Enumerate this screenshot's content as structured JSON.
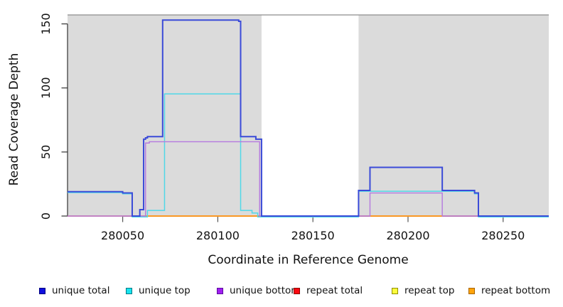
{
  "chart_data": {
    "type": "line",
    "subtype": "step-coverage-plot",
    "title": "",
    "xlabel": "Coordinate in Reference Genome",
    "ylabel": "Read Coverage Depth",
    "xlim": [
      280021,
      280274
    ],
    "ylim": [
      0,
      157
    ],
    "x_ticks": [
      280050,
      280100,
      280150,
      280200,
      280250
    ],
    "y_ticks": [
      0,
      50,
      100,
      150
    ],
    "grid": false,
    "legend_position": "bottom",
    "shading_color": "#DBDBDB",
    "background_shaded_regions_x": [
      [
        280021,
        280123
      ],
      [
        280174,
        280274
      ]
    ],
    "series": [
      {
        "name": "repeat top",
        "color": "#FFFF00",
        "width": 1.4,
        "segments": [
          [
            [
              280021,
              0
            ],
            [
              280274,
              0
            ]
          ]
        ]
      },
      {
        "name": "repeat total",
        "color": "#DC5068",
        "width": 1.6,
        "segments": [
          [
            [
              280021,
              0
            ],
            [
              280274,
              0
            ]
          ]
        ]
      },
      {
        "name": "repeat bottom",
        "color": "#FF9A1C",
        "width": 1.8,
        "segments": [
          [
            [
              280061,
              0
            ],
            [
              280121,
              0
            ]
          ],
          [
            [
              280180,
              0
            ],
            [
              280218,
              0
            ]
          ]
        ]
      },
      {
        "name": "unique top",
        "color": "#50D8E8",
        "width": 1.5,
        "segments": [
          [
            [
              280021,
              19
            ],
            [
              280050,
              18
            ],
            [
              280055,
              0
            ],
            [
              280063,
              5
            ],
            [
              280072,
              96
            ],
            [
              280112,
              5
            ],
            [
              280118,
              3
            ],
            [
              280121,
              0
            ],
            [
              280174,
              20
            ],
            [
              280235,
              18
            ],
            [
              280237,
              0
            ],
            [
              280274,
              0
            ]
          ]
        ]
      },
      {
        "name": "unique bottom",
        "color": "#B579DF",
        "width": 1.4,
        "segments": [
          [
            [
              280021,
              0
            ],
            [
              280062,
              57
            ],
            [
              280064,
              58
            ],
            [
              280122,
              0
            ],
            [
              280180,
              18
            ],
            [
              280218,
              0
            ],
            [
              280274,
              0
            ]
          ]
        ]
      },
      {
        "name": "unique total",
        "color": "#3B4BD8",
        "width": 2,
        "segments": [
          [
            [
              280021,
              19
            ],
            [
              280050,
              18
            ],
            [
              280055,
              0
            ],
            [
              280059,
              5
            ],
            [
              280061,
              60
            ],
            [
              280062,
              61
            ],
            [
              280063,
              62
            ],
            [
              280071,
              153
            ],
            [
              280111,
              152
            ],
            [
              280112,
              62
            ],
            [
              280120,
              60
            ],
            [
              280123,
              0
            ],
            [
              280174,
              20
            ],
            [
              280180,
              38
            ],
            [
              280218,
              20
            ],
            [
              280235,
              18
            ],
            [
              280237,
              0
            ],
            [
              280274,
              0
            ]
          ]
        ]
      }
    ]
  },
  "legend": {
    "items": [
      {
        "label": "unique total",
        "fill": "#0F0FDE",
        "border": "#000080"
      },
      {
        "label": "unique top",
        "fill": "#18E3EE",
        "border": "#007A85"
      },
      {
        "label": "unique bottom",
        "fill": "#A01FF0",
        "border": "#5B0B9E"
      },
      {
        "label": "repeat total",
        "fill": "#FB0810",
        "border": "#8B0000"
      },
      {
        "label": "repeat top",
        "fill": "#FCFC3C",
        "border": "#8F8F00"
      },
      {
        "label": "repeat bottom",
        "fill": "#FFA40B",
        "border": "#A86400"
      }
    ]
  }
}
